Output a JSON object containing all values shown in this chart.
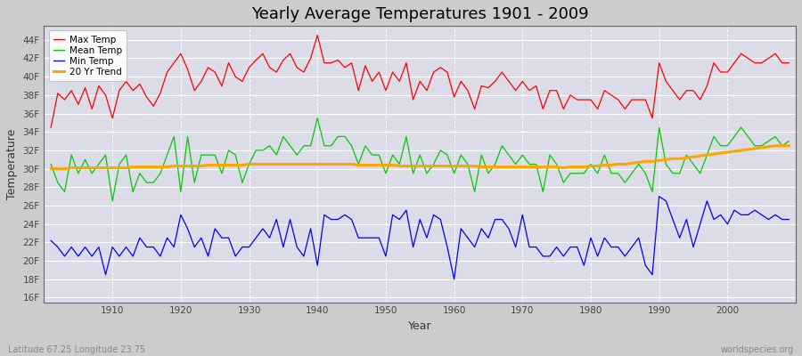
{
  "title": "Yearly Average Temperatures 1901 - 2009",
  "xlabel": "Year",
  "ylabel": "Temperature",
  "fig_bg_color": "#c8c8c8",
  "plot_bg_color": "#e0e0e8",
  "title_fontsize": 13,
  "years": [
    1901,
    1902,
    1903,
    1904,
    1905,
    1906,
    1907,
    1908,
    1909,
    1910,
    1911,
    1912,
    1913,
    1914,
    1915,
    1916,
    1917,
    1918,
    1919,
    1920,
    1921,
    1922,
    1923,
    1924,
    1925,
    1926,
    1927,
    1928,
    1929,
    1930,
    1931,
    1932,
    1933,
    1934,
    1935,
    1936,
    1937,
    1938,
    1939,
    1940,
    1941,
    1942,
    1943,
    1944,
    1945,
    1946,
    1947,
    1948,
    1949,
    1950,
    1951,
    1952,
    1953,
    1954,
    1955,
    1956,
    1957,
    1958,
    1959,
    1960,
    1961,
    1962,
    1963,
    1964,
    1965,
    1966,
    1967,
    1968,
    1969,
    1970,
    1971,
    1972,
    1973,
    1974,
    1975,
    1976,
    1977,
    1978,
    1979,
    1980,
    1981,
    1982,
    1983,
    1984,
    1985,
    1986,
    1987,
    1988,
    1989,
    1990,
    1991,
    1992,
    1993,
    1994,
    1995,
    1996,
    1997,
    1998,
    1999,
    2000,
    2001,
    2002,
    2003,
    2004,
    2005,
    2006,
    2007,
    2008,
    2009
  ],
  "max_temp": [
    34.5,
    38.2,
    37.5,
    38.5,
    37.0,
    38.8,
    36.5,
    39.0,
    38.0,
    35.5,
    38.5,
    39.5,
    38.5,
    39.2,
    37.8,
    36.8,
    38.2,
    40.5,
    41.5,
    42.5,
    40.8,
    38.5,
    39.5,
    41.0,
    40.5,
    39.0,
    41.5,
    40.0,
    39.5,
    41.0,
    41.8,
    42.5,
    41.0,
    40.5,
    41.8,
    42.5,
    41.0,
    40.5,
    42.0,
    44.5,
    41.5,
    41.5,
    41.8,
    41.0,
    41.5,
    38.5,
    41.2,
    39.5,
    40.5,
    38.5,
    40.5,
    39.5,
    41.5,
    37.5,
    39.5,
    38.5,
    40.5,
    41.0,
    40.5,
    37.8,
    39.5,
    38.5,
    36.5,
    39.0,
    38.8,
    39.5,
    40.5,
    39.5,
    38.5,
    39.5,
    38.5,
    39.0,
    36.5,
    38.5,
    38.5,
    36.5,
    38.0,
    37.5,
    37.5,
    37.5,
    36.5,
    38.5,
    38.0,
    37.5,
    36.5,
    37.5,
    37.5,
    37.5,
    35.5,
    41.5,
    39.5,
    38.5,
    37.5,
    38.5,
    38.5,
    37.5,
    39.0,
    41.5,
    40.5,
    40.5,
    41.5,
    42.5,
    42.0,
    41.5,
    41.5,
    42.0,
    42.5,
    41.5,
    41.5
  ],
  "mean_temp": [
    30.5,
    28.5,
    27.5,
    31.5,
    29.5,
    31.0,
    29.5,
    30.5,
    31.5,
    26.5,
    30.5,
    31.5,
    27.5,
    29.5,
    28.5,
    28.5,
    29.5,
    31.5,
    33.5,
    27.5,
    33.5,
    28.5,
    31.5,
    31.5,
    31.5,
    29.5,
    32.0,
    31.5,
    28.5,
    30.5,
    32.0,
    32.0,
    32.5,
    31.5,
    33.5,
    32.5,
    31.5,
    32.5,
    32.5,
    35.5,
    32.5,
    32.5,
    33.5,
    33.5,
    32.5,
    30.5,
    32.5,
    31.5,
    31.5,
    29.5,
    31.5,
    30.5,
    33.5,
    29.5,
    31.5,
    29.5,
    30.5,
    32.0,
    31.5,
    29.5,
    31.5,
    30.5,
    27.5,
    31.5,
    29.5,
    30.5,
    32.5,
    31.5,
    30.5,
    31.5,
    30.5,
    30.5,
    27.5,
    31.5,
    30.5,
    28.5,
    29.5,
    29.5,
    29.5,
    30.5,
    29.5,
    31.5,
    29.5,
    29.5,
    28.5,
    29.5,
    30.5,
    29.5,
    27.5,
    34.5,
    30.5,
    29.5,
    29.5,
    31.5,
    30.5,
    29.5,
    31.5,
    33.5,
    32.5,
    32.5,
    33.5,
    34.5,
    33.5,
    32.5,
    32.5,
    33.0,
    33.5,
    32.5,
    33.0
  ],
  "min_temp": [
    22.2,
    21.5,
    20.5,
    21.5,
    20.5,
    21.5,
    20.5,
    21.5,
    18.5,
    21.5,
    20.5,
    21.5,
    20.5,
    22.5,
    21.5,
    21.5,
    20.5,
    22.5,
    21.5,
    25.0,
    23.5,
    21.5,
    22.5,
    20.5,
    23.5,
    22.5,
    22.5,
    20.5,
    21.5,
    21.5,
    22.5,
    23.5,
    22.5,
    24.5,
    21.5,
    24.5,
    21.5,
    20.5,
    23.5,
    19.5,
    25.0,
    24.5,
    24.5,
    25.0,
    24.5,
    22.5,
    22.5,
    22.5,
    22.5,
    20.5,
    25.0,
    24.5,
    25.5,
    21.5,
    24.5,
    22.5,
    25.0,
    24.5,
    21.5,
    18.0,
    23.5,
    22.5,
    21.5,
    23.5,
    22.5,
    24.5,
    24.5,
    23.5,
    21.5,
    25.0,
    21.5,
    21.5,
    20.5,
    20.5,
    21.5,
    20.5,
    21.5,
    21.5,
    19.5,
    22.5,
    20.5,
    22.5,
    21.5,
    21.5,
    20.5,
    21.5,
    22.5,
    19.5,
    18.5,
    27.0,
    26.5,
    24.5,
    22.5,
    24.5,
    21.5,
    24.0,
    26.5,
    24.5,
    25.0,
    24.0,
    25.5,
    25.0,
    25.0,
    25.5,
    25.0,
    24.5,
    25.0,
    24.5,
    24.5
  ],
  "trend": [
    30.0,
    30.0,
    30.0,
    30.1,
    30.1,
    30.1,
    30.1,
    30.1,
    30.1,
    30.1,
    30.1,
    30.1,
    30.2,
    30.2,
    30.2,
    30.2,
    30.2,
    30.2,
    30.3,
    30.3,
    30.3,
    30.3,
    30.3,
    30.4,
    30.4,
    30.4,
    30.4,
    30.4,
    30.4,
    30.5,
    30.5,
    30.5,
    30.5,
    30.5,
    30.5,
    30.5,
    30.5,
    30.5,
    30.5,
    30.5,
    30.5,
    30.5,
    30.5,
    30.5,
    30.5,
    30.4,
    30.4,
    30.4,
    30.4,
    30.4,
    30.4,
    30.3,
    30.3,
    30.3,
    30.3,
    30.3,
    30.3,
    30.3,
    30.3,
    30.3,
    30.3,
    30.3,
    30.3,
    30.2,
    30.2,
    30.2,
    30.2,
    30.2,
    30.2,
    30.2,
    30.2,
    30.2,
    30.2,
    30.2,
    30.2,
    30.1,
    30.2,
    30.2,
    30.2,
    30.3,
    30.3,
    30.4,
    30.4,
    30.5,
    30.5,
    30.6,
    30.7,
    30.8,
    30.8,
    30.9,
    31.0,
    31.1,
    31.1,
    31.2,
    31.3,
    31.4,
    31.5,
    31.6,
    31.7,
    31.8,
    31.9,
    32.0,
    32.1,
    32.2,
    32.3,
    32.4,
    32.5,
    32.5,
    32.5
  ],
  "max_color": "#ff0000",
  "mean_color": "#00cc00",
  "min_color": "#0000ff",
  "trend_color": "#ffa500",
  "yticks": [
    16,
    18,
    20,
    22,
    24,
    26,
    28,
    30,
    32,
    34,
    36,
    38,
    40,
    42,
    44
  ],
  "ytick_labels": [
    "16F",
    "18F",
    "20F",
    "22F",
    "24F",
    "26F",
    "28F",
    "30F",
    "32F",
    "34F",
    "36F",
    "38F",
    "40F",
    "42F",
    "44F"
  ],
  "ylim": [
    15.5,
    45.5
  ],
  "xlim": [
    1900,
    2010
  ],
  "xticks": [
    1910,
    1920,
    1930,
    1940,
    1950,
    1960,
    1970,
    1980,
    1990,
    2000
  ],
  "legend_labels": [
    "Max Temp",
    "Mean Temp",
    "Min Temp",
    "20 Yr Trend"
  ],
  "subtitle_left": "Latitude 67.25 Longitude 23.75",
  "watermark": "worldspecies.org"
}
